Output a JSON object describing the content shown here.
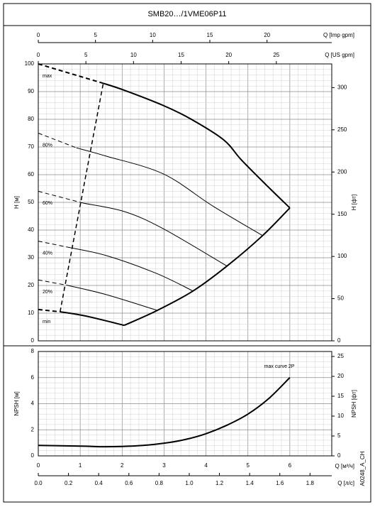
{
  "chart_data": [
    {
      "type": "line",
      "title": "SMB20…/1VME06P11",
      "ylabel": "H [м]",
      "y2label": "H [фт]",
      "xlim": [
        0,
        7
      ],
      "xticks": [
        0,
        1,
        2,
        3,
        4,
        5,
        6,
        7
      ],
      "ylim": [
        0,
        100
      ],
      "yticks": [
        0,
        10,
        20,
        30,
        40,
        50,
        60,
        70,
        80,
        90,
        100
      ],
      "y2lim": [
        0,
        328.08
      ],
      "y2ticks": [
        0,
        50,
        100,
        150,
        200,
        250,
        300
      ],
      "x2label": "Q [Imp gpm]",
      "x2lim": [
        0,
        25.66
      ],
      "x2ticks": [
        0,
        5,
        10,
        15,
        20
      ],
      "x3label": "Q [US gpm]",
      "x3lim": [
        0,
        30.82
      ],
      "x3ticks": [
        0,
        5,
        10,
        15,
        20,
        25
      ],
      "grid": true,
      "series": [
        {
          "name": "max",
          "color": "#000000",
          "linestyle": "dashed",
          "linewidth": 2,
          "x": [
            0,
            1.55
          ],
          "values": [
            100,
            93
          ]
        },
        {
          "color": "#000000",
          "linestyle": "solid",
          "linewidth": 2,
          "x": [
            1.55,
            2.05,
            2.98,
            3.65,
            4.42,
            4.84,
            5.43,
            6.0
          ],
          "values": [
            93,
            90.5,
            85,
            80,
            72.6,
            65.4,
            56.4,
            48
          ]
        },
        {
          "name": "80%",
          "color": "#000000",
          "linestyle": "dashed",
          "linewidth": 1,
          "x": [
            0,
            0.91
          ],
          "values": [
            75,
            69.7
          ]
        },
        {
          "color": "#000000",
          "linestyle": "solid",
          "linewidth": 1,
          "x": [
            0.91,
            1.62,
            2.98,
            4.16,
            5.35
          ],
          "values": [
            69.7,
            66.7,
            60.3,
            48.7,
            38
          ]
        },
        {
          "name": "60%",
          "color": "#000000",
          "linestyle": "dashed",
          "linewidth": 1,
          "x": [
            0,
            1.08
          ],
          "values": [
            54,
            49.7
          ]
        },
        {
          "color": "#000000",
          "linestyle": "solid",
          "linewidth": 1,
          "x": [
            1.08,
            2.05,
            2.98,
            4.5
          ],
          "values": [
            49.7,
            46.7,
            40.5,
            27
          ]
        },
        {
          "name": "40%",
          "color": "#000000",
          "linestyle": "dashed",
          "linewidth": 1,
          "x": [
            0,
            0.71
          ],
          "values": [
            36,
            33.8
          ]
        },
        {
          "color": "#000000",
          "linestyle": "solid",
          "linewidth": 1,
          "x": [
            0.71,
            1.62,
            2.81,
            3.69
          ],
          "values": [
            33.8,
            30.8,
            24.4,
            18
          ]
        },
        {
          "name": "20%",
          "color": "#000000",
          "linestyle": "dashed",
          "linewidth": 1,
          "x": [
            0,
            0.71
          ],
          "values": [
            22,
            20
          ]
        },
        {
          "color": "#000000",
          "linestyle": "solid",
          "linewidth": 1,
          "x": [
            0.71,
            1.62,
            2.84
          ],
          "values": [
            20,
            16.7,
            11
          ]
        },
        {
          "name": "min",
          "color": "#000000",
          "linestyle": "dashed",
          "linewidth": 2,
          "x": [
            0,
            0.52
          ],
          "values": [
            11.3,
            10.5
          ]
        },
        {
          "color": "#000000",
          "linestyle": "solid",
          "linewidth": 2,
          "x": [
            0.52,
            1.12,
            2.05
          ],
          "values": [
            10.5,
            9,
            5.6
          ]
        },
        {
          "color": "#000000",
          "linestyle": "solid",
          "linewidth": 2,
          "x": [
            2.05,
            2.84,
            3.69,
            4.5,
            5.35,
            6.0
          ],
          "values": [
            5.6,
            11,
            18,
            27,
            38,
            48
          ]
        },
        {
          "color": "#000000",
          "linestyle": "dashed",
          "linewidth": 1.5,
          "x": [
            0.52,
            1.55
          ],
          "values": [
            10.5,
            93
          ]
        }
      ]
    },
    {
      "type": "line",
      "ylabel": "NPSH [м]",
      "y2label": "NPSH [фт]",
      "xlabel": "Q [м³/ч]",
      "xlim": [
        0,
        7
      ],
      "xticks": [
        0,
        1,
        2,
        3,
        4,
        5,
        6
      ],
      "ylim": [
        0,
        8
      ],
      "yticks": [
        0,
        2,
        4,
        6,
        8
      ],
      "y2lim": [
        0,
        26.25
      ],
      "y2ticks": [
        0,
        5,
        10,
        15,
        20,
        25
      ],
      "x2label": "Q [л/с]",
      "x2lim": [
        0,
        1.944
      ],
      "x2ticks": [
        {
          "value": 0,
          "label": "0.0"
        },
        0.2,
        0.4,
        0.6,
        0.8,
        {
          "value": 1,
          "label": "1.0"
        },
        1.2,
        1.4,
        1.6,
        1.8
      ],
      "grid": true,
      "series": [
        {
          "color": "#000000",
          "linestyle": "solid",
          "linewidth": 2,
          "x": [
            0,
            1,
            1.5,
            2,
            2.5,
            3,
            3.5,
            4,
            4.5,
            5,
            5.5,
            6
          ],
          "values": [
            0.8,
            0.75,
            0.7,
            0.72,
            0.8,
            0.97,
            1.25,
            1.7,
            2.35,
            3.2,
            4.4,
            6.0
          ]
        }
      ],
      "annotations": [
        {
          "text": "max curve 2P",
          "x": 5.75,
          "y": 6.85
        }
      ],
      "footnote": "A0248_A_CH"
    }
  ]
}
